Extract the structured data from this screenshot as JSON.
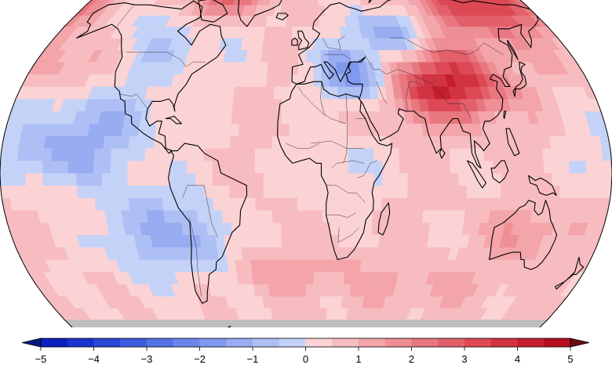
{
  "map": {
    "projection": "robinson",
    "no_data_color": "#bdbdbd",
    "ocean_outline_color": "#000000"
  },
  "colorbar": {
    "min": -5,
    "max": 5,
    "step": 0.5,
    "extend": "both",
    "ticks": [
      -5,
      -4,
      -3,
      -2,
      -1,
      0,
      1,
      2,
      3,
      4,
      5
    ],
    "tick_labels": [
      "−5",
      "−4",
      "−3",
      "−2",
      "−1",
      "0",
      "1",
      "2",
      "3",
      "4",
      "5"
    ],
    "negative_colors": [
      "#0a1fbf",
      "#1b33cc",
      "#2c47d6",
      "#3e5ce0",
      "#5472e6",
      "#6a86ea",
      "#8099ee",
      "#97acf1",
      "#adbff4",
      "#c5d2f8"
    ],
    "positive_colors": [
      "#fbd3d5",
      "#f7bcc0",
      "#f3a5aa",
      "#ee8e95",
      "#e9777f",
      "#e3606a",
      "#dc4955",
      "#d23341",
      "#c51e2e",
      "#b50d1e"
    ],
    "under_color": "#07177e",
    "over_color": "#6e0912"
  }
}
